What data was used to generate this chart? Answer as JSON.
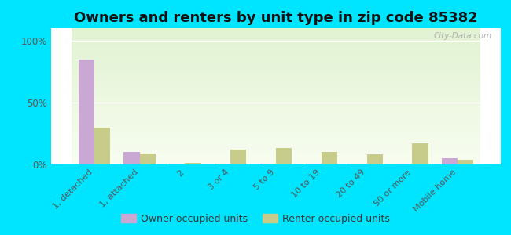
{
  "title": "Owners and renters by unit type in zip code 85382",
  "categories": [
    "1, detached",
    "1, attached",
    "2",
    "3 or 4",
    "5 to 9",
    "10 to 19",
    "20 to 49",
    "50 or more",
    "Mobile home"
  ],
  "owner_values": [
    85,
    10,
    0.5,
    0.5,
    0.5,
    0.5,
    0.5,
    0.5,
    5
  ],
  "renter_values": [
    30,
    9,
    1,
    12,
    13,
    10,
    8,
    17,
    4
  ],
  "owner_color": "#c9a8d4",
  "renter_color": "#c8cc8a",
  "yticks": [
    0,
    50,
    100
  ],
  "ylim": [
    0,
    110
  ],
  "bar_width": 0.35,
  "outer_bg": "#00e5ff",
  "title_fontsize": 13,
  "watermark_text": "City-Data.com",
  "legend_labels": [
    "Owner occupied units",
    "Renter occupied units"
  ]
}
